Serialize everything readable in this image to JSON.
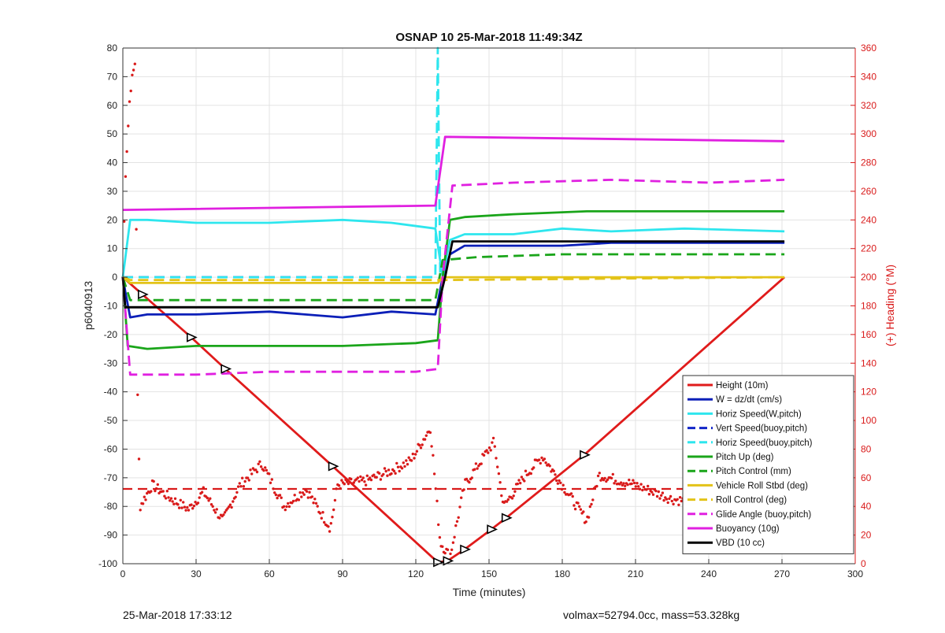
{
  "chart_data": {
    "type": "line",
    "title": "OSNAP 10 25-Mar-2018 11:49:34Z",
    "xlabel": "Time (minutes)",
    "ylabel": "p6040913",
    "ylabel_right": "(+) Heading (°M)",
    "xlim": [
      0,
      300
    ],
    "ylim": [
      -100,
      80
    ],
    "ylim_right": [
      0,
      360
    ],
    "xticks": [
      "0",
      "30",
      "60",
      "90",
      "120",
      "150",
      "180",
      "210",
      "240",
      "270",
      "300"
    ],
    "yticks": [
      "-100",
      "-90",
      "-80",
      "-70",
      "-60",
      "-50",
      "-40",
      "-30",
      "-20",
      "-10",
      "0",
      "10",
      "20",
      "30",
      "40",
      "50",
      "60",
      "70",
      "80"
    ],
    "yticks_right": [
      "0",
      "20",
      "40",
      "60",
      "80",
      "100",
      "120",
      "140",
      "160",
      "180",
      "200",
      "220",
      "240",
      "260",
      "280",
      "300",
      "320",
      "340",
      "360"
    ],
    "grid": true,
    "legend_position": "bottom-right",
    "series": [
      {
        "name": "Height (10m)",
        "color": "#e01b1b",
        "style": "solid",
        "x": [
          0,
          8,
          28,
          42,
          86,
          129,
          133,
          140,
          151,
          157,
          189,
          271
        ],
        "y": [
          0,
          -6,
          -21,
          -32,
          -66,
          -99.5,
          -99,
          -95,
          -88,
          -84,
          -62,
          0
        ]
      },
      {
        "name": "W = dz/dt (cm/s)",
        "color": "#0b1fb8",
        "style": "solid",
        "x": [
          0,
          1,
          3,
          10,
          30,
          60,
          90,
          110,
          128,
          131,
          134,
          140,
          160,
          180,
          200,
          230,
          271
        ],
        "y": [
          0,
          -5,
          -14,
          -13,
          -13,
          -12,
          -14,
          -12,
          -13,
          0,
          8,
          11,
          11,
          11,
          12,
          12,
          12
        ]
      },
      {
        "name": "Horiz Speed(W,pitch)",
        "color": "#2ee6ee",
        "style": "solid",
        "x": [
          0,
          3,
          10,
          30,
          60,
          90,
          110,
          128,
          131,
          134,
          140,
          160,
          180,
          200,
          230,
          271
        ],
        "y": [
          0,
          20,
          20,
          19,
          19,
          20,
          19,
          17,
          0,
          13,
          15,
          15,
          17,
          16,
          17,
          16
        ]
      },
      {
        "name": "Vert Speed(buoy,pitch)",
        "color": "#1226c8",
        "style": "dash",
        "x": [
          0,
          128
        ],
        "y": [
          0,
          0
        ]
      },
      {
        "name": "Horiz Speed(buoy,pitch)",
        "color": "#2ee6ee",
        "style": "dash",
        "x": [
          0,
          128,
          129,
          130
        ],
        "y": [
          0,
          0,
          80,
          0
        ]
      },
      {
        "name": "Pitch Up (deg)",
        "color": "#1aa51a",
        "style": "solid",
        "x": [
          0,
          2,
          10,
          30,
          60,
          90,
          120,
          129,
          131,
          134,
          140,
          160,
          190,
          230,
          271
        ],
        "y": [
          0,
          -24,
          -25,
          -24,
          -24,
          -24,
          -23,
          -22,
          0,
          20,
          21,
          22,
          23,
          23,
          23
        ]
      },
      {
        "name": "Pitch Control (mm)",
        "color": "#1aa51a",
        "style": "dash",
        "x": [
          0,
          3,
          128,
          131,
          145,
          180,
          271
        ],
        "y": [
          0,
          -8,
          -8,
          6,
          7,
          8,
          8
        ]
      },
      {
        "name": "Vehicle Roll Stbd (deg)",
        "color": "#e3c318",
        "style": "solid",
        "x": [
          0,
          3,
          30,
          60,
          90,
          120,
          129,
          131,
          140,
          160,
          190,
          230,
          271
        ],
        "y": [
          0,
          -2,
          -2,
          -2,
          -2,
          -2,
          -2,
          0,
          0,
          0,
          0,
          0,
          0
        ]
      },
      {
        "name": "Roll Control (deg)",
        "color": "#e3c318",
        "style": "dash",
        "x": [
          0,
          3,
          130,
          271
        ],
        "y": [
          0,
          -1,
          -1,
          0
        ]
      },
      {
        "name": "Glide Angle (buoy,pitch)",
        "color": "#e020e0",
        "style": "dash",
        "x": [
          0,
          3,
          30,
          60,
          90,
          120,
          129,
          131,
          135,
          160,
          200,
          240,
          271
        ],
        "y": [
          0,
          -34,
          -34,
          -33,
          -33,
          -33,
          -32,
          0,
          32,
          33,
          34,
          33,
          34
        ]
      },
      {
        "name": "Buoyancy (10g)",
        "color": "#e020e0",
        "style": "solid",
        "x": [
          0,
          128,
          132,
          271
        ],
        "y": [
          23.5,
          25,
          49,
          47.5
        ]
      },
      {
        "name": "VBD (10 cc)",
        "color": "#000000",
        "style": "solid",
        "x": [
          0,
          1,
          129,
          132,
          135,
          271
        ],
        "y": [
          0,
          -10.5,
          -10.5,
          0,
          12.5,
          12.5
        ]
      }
    ]
  },
  "footer": {
    "left": "25-Mar-2018 17:33:12",
    "right": "volmax=52794.0cc, mass=53.328kg"
  }
}
